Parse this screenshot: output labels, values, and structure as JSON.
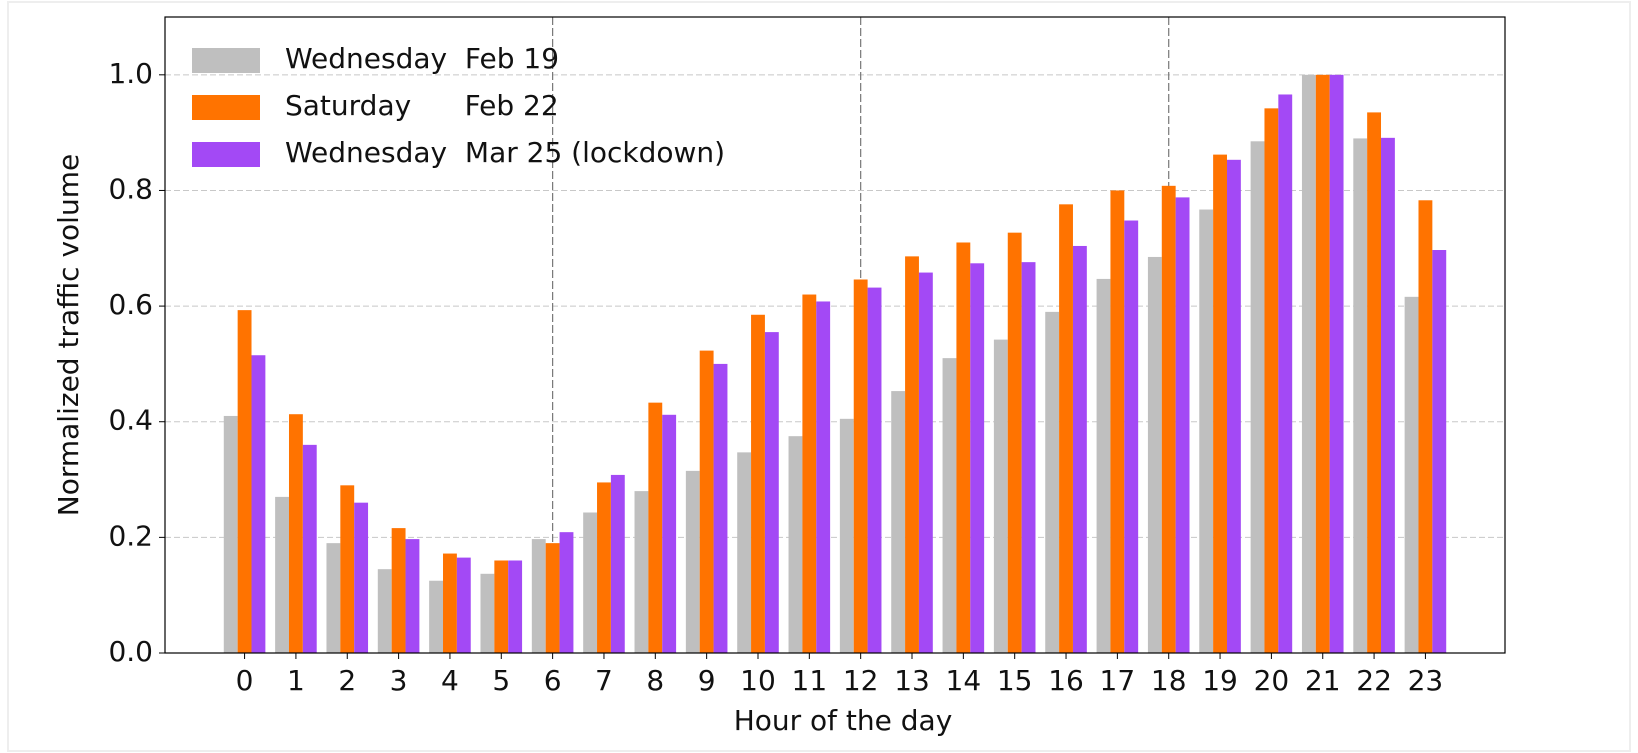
{
  "chart_data": {
    "type": "bar",
    "x_label": "Hour of the day",
    "y_label": "Normalized traffic volume",
    "categories": [
      "0",
      "1",
      "2",
      "3",
      "4",
      "5",
      "6",
      "7",
      "8",
      "9",
      "10",
      "11",
      "12",
      "13",
      "14",
      "15",
      "16",
      "17",
      "18",
      "19",
      "20",
      "21",
      "22",
      "23"
    ],
    "series": [
      {
        "name": "Wednesday  Feb 19",
        "color": "#bfbfbf",
        "values": [
          0.41,
          0.27,
          0.19,
          0.145,
          0.125,
          0.137,
          0.197,
          0.243,
          0.28,
          0.315,
          0.347,
          0.375,
          0.405,
          0.453,
          0.51,
          0.542,
          0.59,
          0.647,
          0.685,
          0.767,
          0.885,
          1.0,
          0.89,
          0.616
        ]
      },
      {
        "name": "Saturday      Feb 22",
        "color": "#ff7300",
        "values": [
          0.593,
          0.413,
          0.29,
          0.216,
          0.172,
          0.16,
          0.19,
          0.295,
          0.433,
          0.523,
          0.585,
          0.62,
          0.646,
          0.686,
          0.71,
          0.727,
          0.776,
          0.8,
          0.808,
          0.862,
          0.942,
          1.0,
          0.935,
          0.783
        ]
      },
      {
        "name": "Wednesday  Mar 25 (lockdown)",
        "color": "#a349f5",
        "values": [
          0.515,
          0.36,
          0.26,
          0.197,
          0.165,
          0.16,
          0.209,
          0.308,
          0.412,
          0.5,
          0.555,
          0.608,
          0.632,
          0.658,
          0.674,
          0.676,
          0.704,
          0.748,
          0.788,
          0.853,
          0.966,
          1.0,
          0.891,
          0.697
        ]
      }
    ],
    "ylim": [
      0,
      1.1
    ],
    "yticks": [
      {
        "value": 0,
        "label": "0.0"
      },
      0.2,
      0.4,
      0.6,
      0.8,
      {
        "value": 1,
        "label": "1.0"
      }
    ],
    "grid": true,
    "vlines": [
      6,
      12,
      18
    ],
    "legend": "upper left"
  }
}
